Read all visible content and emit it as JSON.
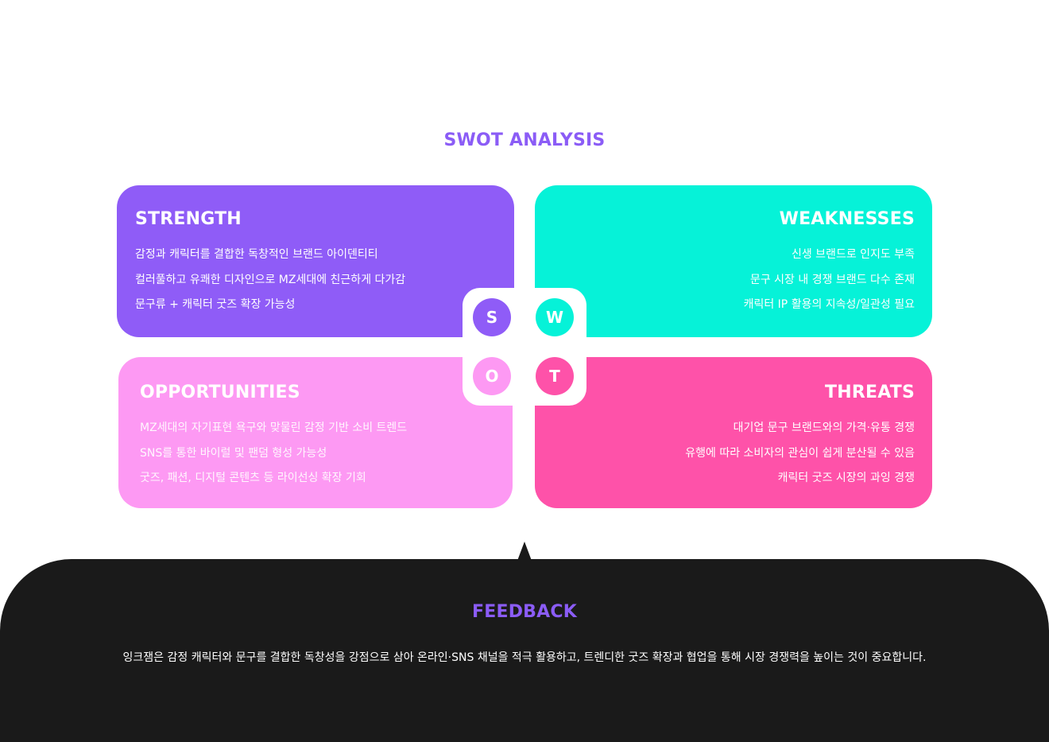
{
  "title": "SWOT ANALYSIS",
  "colors": {
    "accent": "#8b5cf6",
    "strength": "#8f5cf7",
    "weakness": "#06f2d8",
    "opportunity": "#fd99f3",
    "threat": "#fe52a9",
    "feedback_bg": "#1a1a1a"
  },
  "quadrants": {
    "strength": {
      "letter": "S",
      "heading": "STRENGTH",
      "items": [
        "감정과 캐릭터를 결합한 독창적인 브랜드 아이덴티티",
        "컬러풀하고 유쾌한 디자인으로 MZ세대에 친근하게 다가감",
        "문구류 + 캐릭터 굿즈 확장 가능성"
      ]
    },
    "weakness": {
      "letter": "W",
      "heading": "WEAKNESSES",
      "items": [
        "신생 브랜드로 인지도 부족",
        "문구 시장 내 경쟁 브랜드 다수 존재",
        "캐릭터 IP 활용의 지속성/일관성 필요"
      ]
    },
    "opportunity": {
      "letter": "O",
      "heading": "OPPORTUNITIES",
      "items": [
        "MZ세대의 자기표현 욕구와 맞물린 감정 기반 소비 트렌드",
        "SNS를 통한 바이럴 및 팬덤 형성 가능성",
        "굿즈, 패션, 디지털 콘텐츠 등 라이선싱 확장 기회"
      ]
    },
    "threat": {
      "letter": "T",
      "heading": "THREATS",
      "items": [
        "대기업 문구 브랜드와의 가격·유통 경쟁",
        "유행에 따라 소비자의 관심이 쉽게 분산될 수 있음",
        "캐릭터 굿즈 시장의 과잉 경쟁"
      ]
    }
  },
  "feedback": {
    "title": "FEEDBACK",
    "text": "잉크잼은 감정 캐릭터와 문구를 결합한 독창성을 강점으로 삼아 온라인·SNS 채널을 적극 활용하고, 트렌디한 굿즈 확장과 협업을 통해 시장 경쟁력을 높이는 것이 중요합니다."
  }
}
